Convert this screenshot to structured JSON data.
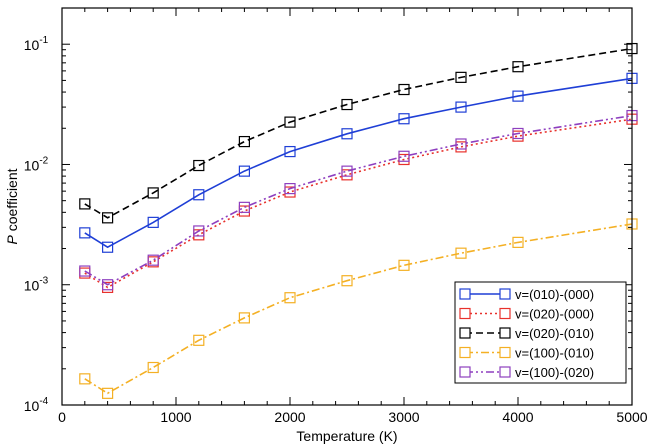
{
  "chart_data": {
    "type": "line",
    "title": "",
    "xlabel": "Temperature (K)",
    "ylabel_italic": "P",
    "ylabel_rest": " coefficient",
    "xlim": [
      0,
      5000
    ],
    "ylim": [
      0.0001,
      0.2
    ],
    "yscale": "log",
    "x_ticks": [
      0,
      1000,
      2000,
      3000,
      4000,
      5000
    ],
    "x_tick_labels": [
      "0",
      "1000",
      "2000",
      "3000",
      "4000",
      "5000"
    ],
    "y_ticks": [
      {
        "value": 0.0001,
        "base": "10",
        "exp": "-4"
      },
      {
        "value": 0.001,
        "base": "10",
        "exp": "-3"
      },
      {
        "value": 0.01,
        "base": "10",
        "exp": "-2"
      },
      {
        "value": 0.1,
        "base": "10",
        "exp": "-1"
      }
    ],
    "grid": false,
    "legend_position": "bottom-right",
    "x": [
      200,
      400,
      800,
      1200,
      1600,
      2000,
      2500,
      3000,
      3500,
      4000,
      5000
    ],
    "series": [
      {
        "name": "v=(010)-(000)",
        "color": "#1f3fd6",
        "dash": "",
        "values": [
          0.0027,
          0.00205,
          0.0033,
          0.0056,
          0.0088,
          0.0128,
          0.018,
          0.024,
          0.03,
          0.037,
          0.052
        ]
      },
      {
        "name": "v=(020)-(000)",
        "color": "#e8312c",
        "dash": "2,3",
        "values": [
          0.00125,
          0.00095,
          0.00155,
          0.0026,
          0.0041,
          0.0059,
          0.0082,
          0.011,
          0.014,
          0.0172,
          0.0238
        ]
      },
      {
        "name": "v=(020)-(010)",
        "color": "#000000",
        "dash": "7,4",
        "values": [
          0.0047,
          0.0036,
          0.0058,
          0.0098,
          0.0155,
          0.0225,
          0.0315,
          0.042,
          0.053,
          0.065,
          0.092
        ]
      },
      {
        "name": "v=(100)-(010)",
        "color": "#f4b024",
        "dash": "8,3,2,3",
        "values": [
          0.000165,
          0.000125,
          0.000205,
          0.000345,
          0.00053,
          0.00078,
          0.00108,
          0.00145,
          0.00183,
          0.00225,
          0.0032
        ]
      },
      {
        "name": "v=(100)-(020)",
        "color": "#8e3fbf",
        "dash": "8,3,2,3,2,3",
        "values": [
          0.0013,
          0.001,
          0.0016,
          0.0028,
          0.0044,
          0.0063,
          0.0088,
          0.0117,
          0.0148,
          0.0181,
          0.0255
        ]
      }
    ]
  }
}
